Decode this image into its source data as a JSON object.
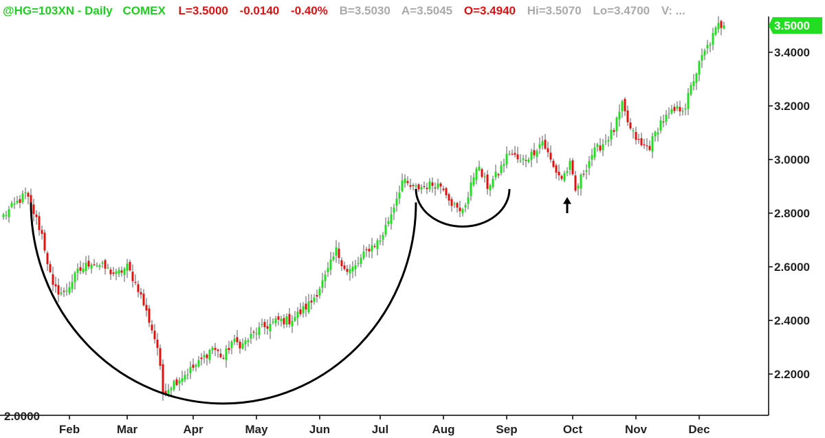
{
  "header": {
    "symbol": "@HG=103XN - Daily",
    "exchange": "COMEX",
    "last": "L=3.5000",
    "change": "-0.0140",
    "change_pct": "-0.40%",
    "bid": "B=3.5030",
    "ask": "A=3.5045",
    "open": "O=3.4940",
    "high": "Hi=3.5070",
    "low": "Lo=3.4700",
    "volume": "V: ..."
  },
  "colors": {
    "up": "#22dd22",
    "down": "#dd1111",
    "wick": "#555555",
    "header_green": "#22cc22",
    "header_red": "#dd1111",
    "header_gray": "#aaaaaa",
    "last_label_bg": "#22dd22",
    "annotation": "#000000"
  },
  "chart_data": {
    "type": "candlestick",
    "title": "@HG=103XN - Daily",
    "ylim": [
      2.05,
      3.55
    ],
    "y_ticks": [
      "3.4000",
      "3.2000",
      "3.0000",
      "2.8000",
      "2.6000",
      "2.4000",
      "2.2000"
    ],
    "x_ticks": [
      "Feb",
      "Mar",
      "Apr",
      "May",
      "Jun",
      "Jul",
      "Aug",
      "Sep",
      "Oct",
      "Nov",
      "Dec"
    ],
    "x_tick_days": [
      24,
      45,
      69,
      92,
      115,
      137,
      160,
      183,
      207,
      230,
      253
    ],
    "last_price_label": "3.5000",
    "last_price": 3.5,
    "bottom_tick_partial": "2.0000",
    "anchors": [
      [
        0,
        2.79
      ],
      [
        8,
        2.87
      ],
      [
        10,
        2.83
      ],
      [
        14,
        2.72
      ],
      [
        18,
        2.52
      ],
      [
        22,
        2.5
      ],
      [
        27,
        2.58
      ],
      [
        32,
        2.62
      ],
      [
        36,
        2.6
      ],
      [
        41,
        2.57
      ],
      [
        45,
        2.6
      ],
      [
        49,
        2.52
      ],
      [
        53,
        2.4
      ],
      [
        56,
        2.3
      ],
      [
        58,
        2.13
      ],
      [
        61,
        2.16
      ],
      [
        66,
        2.2
      ],
      [
        71,
        2.24
      ],
      [
        76,
        2.3
      ],
      [
        80,
        2.26
      ],
      [
        83,
        2.32
      ],
      [
        87,
        2.31
      ],
      [
        92,
        2.36
      ],
      [
        96,
        2.38
      ],
      [
        100,
        2.4
      ],
      [
        104,
        2.4
      ],
      [
        108,
        2.43
      ],
      [
        112,
        2.47
      ],
      [
        117,
        2.56
      ],
      [
        121,
        2.66
      ],
      [
        125,
        2.58
      ],
      [
        128,
        2.6
      ],
      [
        133,
        2.67
      ],
      [
        137,
        2.7
      ],
      [
        141,
        2.8
      ],
      [
        145,
        2.92
      ],
      [
        149,
        2.89
      ],
      [
        153,
        2.9
      ],
      [
        157,
        2.91
      ],
      [
        160,
        2.9
      ],
      [
        163,
        2.84
      ],
      [
        166,
        2.8
      ],
      [
        169,
        2.86
      ],
      [
        172,
        2.98
      ],
      [
        176,
        2.9
      ],
      [
        180,
        2.95
      ],
      [
        184,
        3.03
      ],
      [
        188,
        2.99
      ],
      [
        192,
        3.02
      ],
      [
        196,
        3.07
      ],
      [
        200,
        2.97
      ],
      [
        203,
        2.93
      ],
      [
        206,
        2.98
      ],
      [
        208,
        2.88
      ],
      [
        210,
        2.93
      ],
      [
        214,
        3.02
      ],
      [
        218,
        3.06
      ],
      [
        222,
        3.11
      ],
      [
        225,
        3.2
      ],
      [
        228,
        3.11
      ],
      [
        232,
        3.05
      ],
      [
        235,
        3.05
      ],
      [
        239,
        3.14
      ],
      [
        244,
        3.18
      ],
      [
        248,
        3.2
      ],
      [
        251,
        3.3
      ],
      [
        254,
        3.38
      ],
      [
        257,
        3.44
      ],
      [
        260,
        3.5
      ],
      [
        262,
        3.5
      ]
    ],
    "annotations": {
      "big_cup": {
        "from_day": 10,
        "to_day": 150,
        "bottom": 2.09,
        "top": 2.84
      },
      "small_cup": {
        "from_day": 150,
        "to_day": 184,
        "bottom": 2.75,
        "top": 2.89
      },
      "arrow": {
        "day": 205,
        "tip_price": 2.86,
        "tail_price": 2.8
      }
    }
  }
}
